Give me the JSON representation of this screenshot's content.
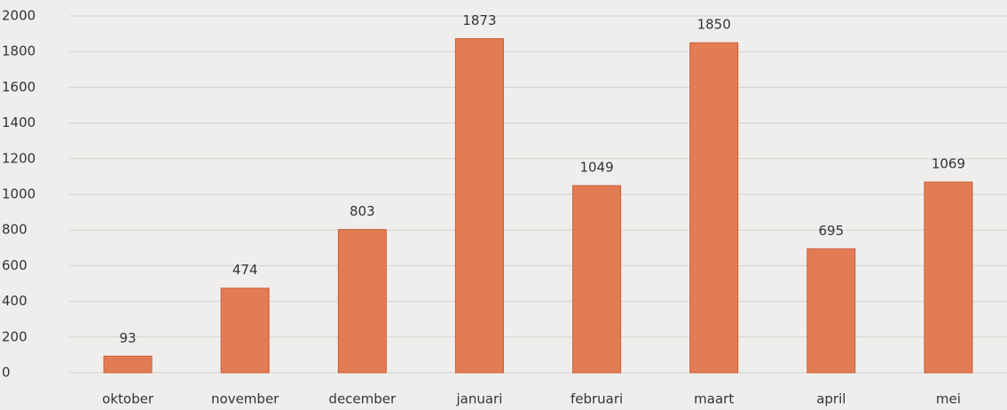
{
  "chart_data": {
    "type": "bar",
    "categories": [
      "oktober",
      "november",
      "december",
      "januari",
      "februari",
      "maart",
      "april",
      "mei"
    ],
    "values": [
      93,
      474,
      803,
      1873,
      1049,
      1850,
      695,
      1069
    ],
    "color": "#e27c55",
    "ylim": [
      0,
      2000
    ],
    "yticks": [
      0,
      200,
      400,
      600,
      800,
      1000,
      1200,
      1400,
      1600,
      1800,
      2000
    ],
    "grid": true
  }
}
